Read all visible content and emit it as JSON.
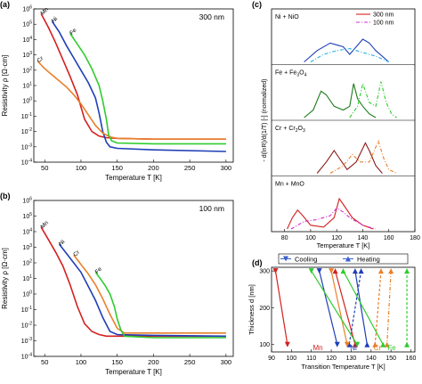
{
  "colors": {
    "Mn": "#d42020",
    "Ni": "#1f3fb8",
    "Cr": "#e8802a",
    "Fe": "#2ecc2e",
    "nio": "#1f3fb8",
    "nio100": "#2ab0e0",
    "fe": "#2ecc2e",
    "fe_dark": "#1a7a1a",
    "cr": "#8b1a1a",
    "cr100": "#e8802a",
    "mn": "#d42020",
    "mn100": "#d030d0",
    "axis": "#000000"
  },
  "chart_data": [
    {
      "id": "a",
      "type": "line",
      "panel_label": "(a)",
      "annotation": "300 nm",
      "xlabel": "Temperature T [K]",
      "ylabel": "Resistivity ρ [Ω·cm]",
      "xlim": [
        35,
        310
      ],
      "ylog": true,
      "ylim_exp": [
        -4,
        6
      ],
      "xticks": [
        50,
        100,
        150,
        200,
        250,
        300
      ],
      "yticks": [
        "10-4",
        "10-3",
        "10-2",
        "10-1",
        "100",
        "101",
        "102",
        "103",
        "104",
        "105",
        "106"
      ],
      "series": [
        {
          "name": "Mn",
          "x": [
            45,
            55,
            65,
            75,
            85,
            95,
            105,
            115,
            125,
            135,
            150,
            200,
            300
          ],
          "logy": [
            5.7,
            4.8,
            3.8,
            2.7,
            1.6,
            0.4,
            -1.2,
            -2.0,
            -2.3,
            -2.4,
            -2.45,
            -2.5,
            -2.5
          ]
        },
        {
          "name": "Ni",
          "x": [
            60,
            70,
            80,
            90,
            100,
            110,
            120,
            125,
            130,
            135,
            140,
            150,
            200,
            300
          ],
          "logy": [
            5.2,
            4.5,
            3.6,
            2.8,
            2.0,
            1.2,
            0.2,
            -0.8,
            -2.0,
            -2.7,
            -3.0,
            -3.1,
            -3.2,
            -3.3
          ]
        },
        {
          "name": "Cr",
          "x": [
            40,
            50,
            60,
            70,
            80,
            90,
            100,
            110,
            120,
            130,
            140,
            150,
            200,
            300
          ],
          "logy": [
            2.6,
            2.1,
            1.7,
            1.3,
            0.9,
            0.4,
            -0.2,
            -0.9,
            -1.6,
            -2.1,
            -2.35,
            -2.45,
            -2.5,
            -2.5
          ]
        },
        {
          "name": "Fe",
          "x": [
            85,
            95,
            105,
            115,
            125,
            130,
            135,
            138,
            142,
            150,
            200,
            300
          ],
          "logy": [
            4.4,
            3.7,
            3.0,
            2.1,
            1.0,
            0.0,
            -1.2,
            -2.2,
            -2.6,
            -2.75,
            -2.8,
            -2.8
          ]
        }
      ]
    },
    {
      "id": "b",
      "type": "line",
      "panel_label": "(b)",
      "annotation": "100 nm",
      "xlabel": "Temperature T [K]",
      "ylabel": "Resistivity ρ [Ω·cm]",
      "xlim": [
        35,
        310
      ],
      "ylog": true,
      "ylim_exp": [
        -4,
        6
      ],
      "xticks": [
        50,
        100,
        150,
        200,
        250,
        300
      ],
      "yticks": [
        "10-4",
        "10-3",
        "10-2",
        "10-1",
        "100",
        "101",
        "102",
        "103",
        "104",
        "105",
        "106"
      ],
      "series": [
        {
          "name": "Mn",
          "x": [
            45,
            55,
            65,
            75,
            85,
            95,
            105,
            115,
            125,
            135,
            150,
            200,
            300
          ],
          "logy": [
            4.3,
            3.5,
            2.7,
            1.8,
            0.6,
            -0.8,
            -1.9,
            -2.4,
            -2.6,
            -2.7,
            -2.7,
            -2.7,
            -2.7
          ]
        },
        {
          "name": "Ni",
          "x": [
            70,
            80,
            90,
            100,
            110,
            120,
            130,
            140,
            150,
            200,
            300
          ],
          "logy": [
            3.2,
            2.6,
            2.0,
            1.4,
            0.5,
            -0.4,
            -1.5,
            -2.4,
            -2.6,
            -2.65,
            -2.7
          ]
        },
        {
          "name": "Cr",
          "x": [
            90,
            100,
            110,
            120,
            130,
            140,
            150,
            160,
            200,
            300
          ],
          "logy": [
            2.5,
            1.9,
            1.3,
            0.6,
            -0.3,
            -1.3,
            -2.2,
            -2.5,
            -2.5,
            -2.5
          ]
        },
        {
          "name": "Fe",
          "x": [
            120,
            128,
            134,
            140,
            146,
            150,
            155,
            160,
            200,
            300
          ],
          "logy": [
            1.4,
            0.9,
            0.5,
            0.0,
            -0.8,
            -1.6,
            -2.3,
            -2.7,
            -2.8,
            -2.8
          ]
        }
      ]
    },
    {
      "id": "c",
      "type": "line",
      "panel_label": "(c)",
      "xlabel": "Temperature T [K]",
      "ylabel": "- d(lnR)/d(1/T) [-] (normalized)",
      "xlim": [
        70,
        180
      ],
      "xticks": [
        80,
        100,
        120,
        140,
        160,
        180
      ],
      "legend": [
        {
          "label": "300 nm",
          "style": "solid"
        },
        {
          "label": "100 nm",
          "style": "dashdot"
        }
      ],
      "subpanels": [
        {
          "label": "Ni + NiO",
          "series": [
            {
              "thickness": "300 nm",
              "x": [
                95,
                105,
                115,
                125,
                130,
                135,
                140,
                145,
                150,
                160
              ],
              "y": [
                0.0,
                0.3,
                0.5,
                0.4,
                0.2,
                0.4,
                0.6,
                0.5,
                0.3,
                0.0
              ]
            },
            {
              "thickness": "100 nm",
              "x": [
                100,
                110,
                120,
                130,
                140,
                150,
                160
              ],
              "y": [
                0.0,
                0.2,
                0.3,
                0.35,
                0.25,
                0.15,
                0.0
              ]
            }
          ]
        },
        {
          "label": "Fe + Fe3O4",
          "series": [
            {
              "thickness": "300 nm",
              "x": [
                95,
                102,
                108,
                112,
                118,
                125,
                130,
                133,
                136,
                140,
                145,
                150
              ],
              "y": [
                0.0,
                0.2,
                0.7,
                0.6,
                0.3,
                0.2,
                0.3,
                0.9,
                0.5,
                0.3,
                0.1,
                0.0
              ]
            },
            {
              "thickness": "100 nm",
              "x": [
                130,
                136,
                140,
                145,
                150,
                154,
                158,
                162,
                166
              ],
              "y": [
                0.0,
                0.3,
                0.9,
                0.4,
                0.3,
                0.95,
                0.4,
                0.1,
                0.0
              ]
            }
          ]
        },
        {
          "label": "Cr + Cr2O3",
          "series": [
            {
              "thickness": "300 nm",
              "x": [
                105,
                112,
                118,
                122,
                128,
                135,
                142,
                145,
                150,
                155
              ],
              "y": [
                0.0,
                0.3,
                0.6,
                0.4,
                0.1,
                0.3,
                0.8,
                0.6,
                0.2,
                0.0
              ]
            },
            {
              "thickness": "100 nm",
              "x": [
                115,
                125,
                132,
                138,
                145,
                152,
                156,
                160,
                166
              ],
              "y": [
                0.0,
                0.2,
                0.5,
                0.3,
                0.3,
                0.85,
                0.4,
                0.1,
                0.0
              ]
            }
          ]
        },
        {
          "label": "Mn + MnO",
          "series": [
            {
              "thickness": "300 nm",
              "x": [
                82,
                86,
                90,
                94,
                100,
                110,
                118,
                122,
                126,
                132,
                140,
                148
              ],
              "y": [
                0.0,
                0.3,
                0.5,
                0.35,
                0.1,
                0.05,
                0.3,
                0.8,
                0.6,
                0.3,
                0.1,
                0.0
              ]
            },
            {
              "thickness": "100 nm",
              "x": [
                85,
                95,
                105,
                115,
                120,
                125,
                130,
                140,
                150
              ],
              "y": [
                0.0,
                0.2,
                0.25,
                0.35,
                0.55,
                0.45,
                0.3,
                0.1,
                0.0
              ]
            }
          ]
        }
      ]
    },
    {
      "id": "d",
      "type": "line",
      "panel_label": "(d)",
      "xlabel": "Transition Temperature T [K]",
      "ylabel": "Thickness d [nm]",
      "xlim": [
        90,
        162
      ],
      "ylim": [
        80,
        310
      ],
      "xticks": [
        90,
        100,
        110,
        120,
        130,
        140,
        150,
        160
      ],
      "yticks": [
        100,
        200,
        300
      ],
      "legend": [
        {
          "label": "Cooling",
          "marker": "triangle-down"
        },
        {
          "label": "Heating",
          "marker": "triangle-up"
        }
      ],
      "element_labels": [
        "Mn",
        "Ni",
        "Cr",
        "Fe"
      ],
      "series": [
        {
          "name": "Mn",
          "segments": [
            {
              "from": [
                92,
                300
              ],
              "to": [
                98,
                100
              ],
              "dir": "down",
              "style": "solid"
            },
            {
              "from": [
                122,
                300
              ],
              "to": [
                132,
                100
              ],
              "dir": "up",
              "style": "solid"
            }
          ]
        },
        {
          "name": "Ni",
          "segments": [
            {
              "from": [
                114,
                300
              ],
              "to": [
                123,
                100
              ],
              "dir": "down",
              "style": "solid"
            },
            {
              "from": [
                135,
                300
              ],
              "to": [
                129,
                100
              ],
              "dir": "up",
              "style": "dashed"
            },
            {
              "from": [
                132,
                300
              ],
              "to": [
                138,
                100
              ],
              "dir": "up",
              "style": "solid"
            }
          ]
        },
        {
          "name": "Cr",
          "segments": [
            {
              "from": [
                120,
                300
              ],
              "to": [
                128,
                100
              ],
              "dir": "down",
              "style": "solid"
            },
            {
              "from": [
                145,
                300
              ],
              "to": [
                142,
                100
              ],
              "dir": "up",
              "style": "dashed"
            },
            {
              "from": [
                150,
                300
              ],
              "to": [
                148,
                100
              ],
              "dir": "up",
              "style": "dashdot"
            }
          ]
        },
        {
          "name": "Fe",
          "segments": [
            {
              "from": [
                110,
                300
              ],
              "to": [
                133,
                100
              ],
              "dir": "down",
              "style": "solid"
            },
            {
              "from": [
                126,
                300
              ],
              "to": [
                146,
                100
              ],
              "dir": "up",
              "style": "solid"
            },
            {
              "from": [
                158,
                300
              ],
              "to": [
                158,
                100
              ],
              "dir": "up",
              "style": "dashed"
            }
          ]
        }
      ]
    }
  ]
}
